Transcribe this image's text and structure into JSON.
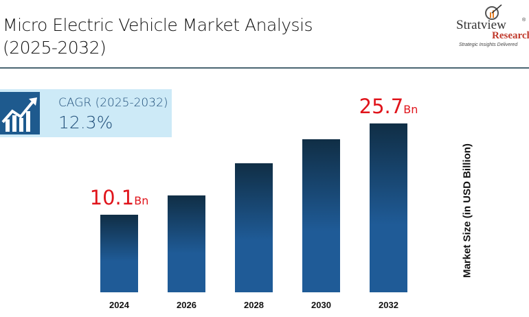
{
  "header": {
    "title_line1": "Micro Electric Vehicle Market Analysis",
    "title_line2": "(2025-2032)"
  },
  "logo": {
    "brand": "Stratview",
    "sub": "Research",
    "tagline": "Strategic Insights Delivered",
    "reg": "®"
  },
  "cagr": {
    "label": "CAGR (2025-2032)",
    "value": "12.3%",
    "icon": "growth-chart-icon"
  },
  "chart_data": {
    "type": "bar",
    "categories": [
      "2024",
      "2026",
      "2028",
      "2030",
      "2032"
    ],
    "values": [
      10.1,
      13.4,
      18.9,
      23.0,
      25.7
    ],
    "data_labels": [
      {
        "index": 0,
        "value": "10.1",
        "unit": "Bn"
      },
      {
        "index": 4,
        "value": "25.7",
        "unit": "Bn"
      }
    ],
    "ylabel": "Market Size (in USD Billion)",
    "colors": {
      "bar_top": "#102e45",
      "bar_bottom": "#1f5b97",
      "label": "#e0141b"
    },
    "grid": false
  }
}
